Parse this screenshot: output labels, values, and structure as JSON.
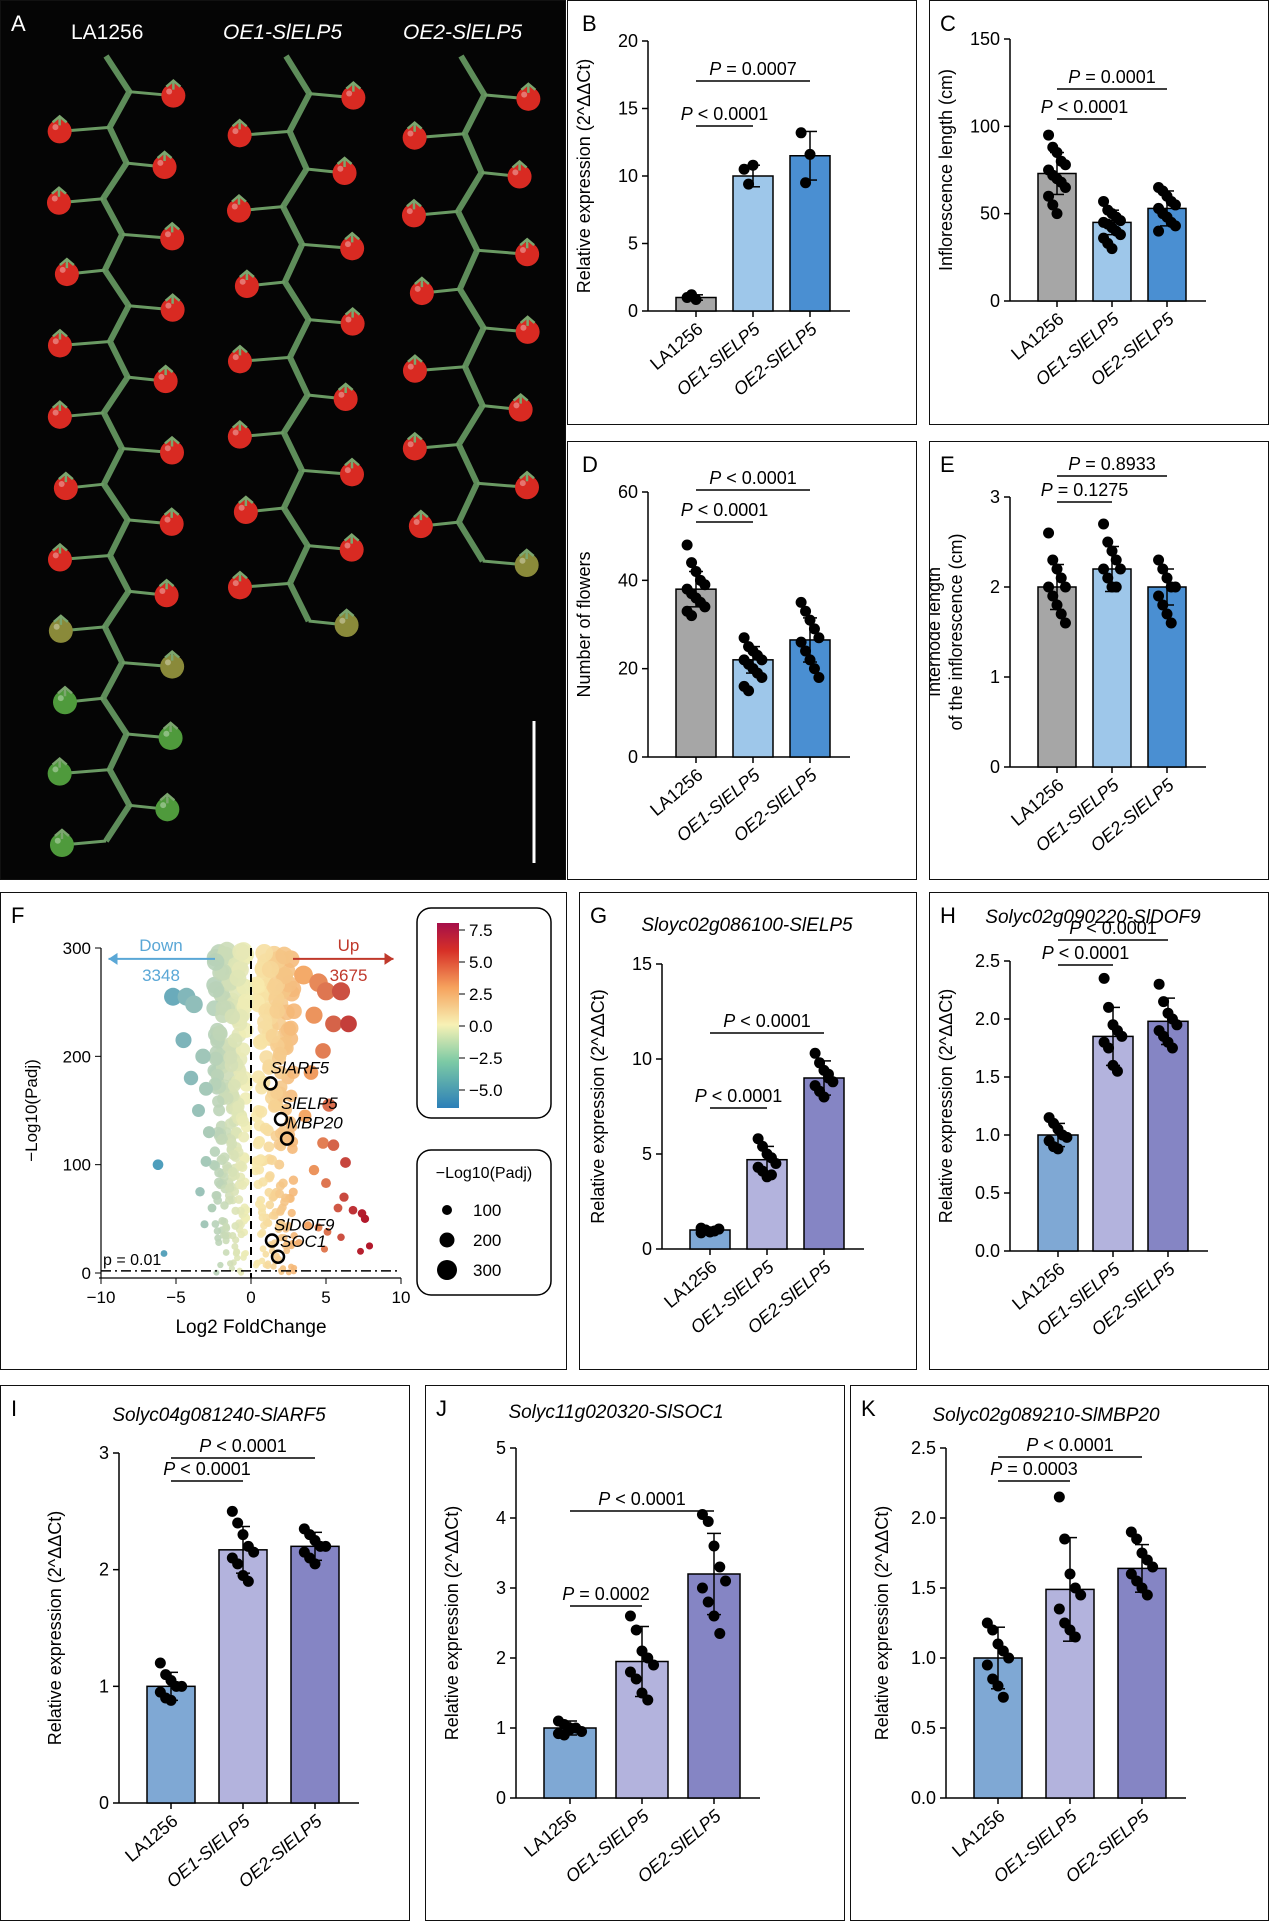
{
  "panel_a": {
    "label": "A",
    "lines": [
      "LA1256",
      "OE1-SlELP5",
      "OE2-SlELP5"
    ]
  },
  "volcano": {
    "label": "F",
    "ylabel": "−Log10(Padj)",
    "xlabel": "Log2 FoldChange",
    "down_label": "Down",
    "down_count": "3348",
    "up_label": "Up",
    "up_count": "3675",
    "threshold_label": "p = 0.01",
    "xticks": [
      "−10",
      "−5",
      "0",
      "5",
      "10"
    ],
    "yticks": [
      "0",
      "100",
      "200",
      "300"
    ],
    "genes": [
      {
        "name": "SlARF5",
        "x": 1.3,
        "y": 175
      },
      {
        "name": "SlELP5",
        "x": 2.0,
        "y": 142
      },
      {
        "name": "MBP20",
        "x": 2.4,
        "y": 124
      },
      {
        "name": "SlDOF9",
        "x": 1.4,
        "y": 30
      },
      {
        "name": "SOC1",
        "x": 1.8,
        "y": 15
      }
    ],
    "colorbar_ticks": [
      "7.5",
      "5.0",
      "2.5",
      "0.0",
      "−2.5",
      "−5.0"
    ],
    "size_legend_title": "−Log10(Padj)",
    "size_legend": [
      "100",
      "200",
      "300"
    ],
    "colors": {
      "down": "#2b8cbe",
      "mid": "#f7f1b5",
      "up": "#b2182b",
      "up_arrow": "#c0392b",
      "down_arrow": "#5aa7d6"
    }
  },
  "chart_data": [
    {
      "id": "B",
      "type": "bar",
      "title": "",
      "categories": [
        "LA1256",
        "OE1-SlELP5",
        "OE2-SlELP5"
      ],
      "ylabel": "Relative expression (2^ΔΔCt)",
      "ylim": [
        0,
        20
      ],
      "yticks": [
        "0",
        "5",
        "10",
        "15",
        "20"
      ],
      "values": [
        1.0,
        10.0,
        11.5
      ],
      "sd": [
        0.2,
        0.8,
        1.8
      ],
      "points": [
        [
          1.0,
          1.2,
          0.85
        ],
        [
          10.5,
          9.4,
          10.8
        ],
        [
          13.2,
          9.5,
          11.6
        ]
      ],
      "pvals": [
        {
          "text": "P < 0.0001",
          "a": 0,
          "b": 1
        },
        {
          "text": "P = 0.0007",
          "a": 0,
          "b": 2
        }
      ],
      "colors": [
        "#a6a6a6",
        "#9ec7ea",
        "#4a8fd2"
      ]
    },
    {
      "id": "C",
      "type": "bar",
      "title": "",
      "categories": [
        "LA1256",
        "OE1-SlELP5",
        "OE2-SlELP5"
      ],
      "ylabel": "Inflorescence length (cm)",
      "ylim": [
        0,
        150
      ],
      "yticks": [
        "0",
        "50",
        "100",
        "150"
      ],
      "values": [
        73,
        45,
        53
      ],
      "sd": [
        12,
        7,
        10
      ],
      "points": [
        [
          95,
          88,
          85,
          80,
          78,
          75,
          72,
          70,
          68,
          65,
          60,
          55,
          50
        ],
        [
          57,
          52,
          50,
          48,
          46,
          45,
          44,
          42,
          40,
          38,
          36,
          33,
          30
        ],
        [
          65,
          63,
          60,
          57,
          55,
          53,
          50,
          48,
          45,
          43,
          40
        ]
      ],
      "pvals": [
        {
          "text": "P < 0.0001",
          "a": 0,
          "b": 1
        },
        {
          "text": "P = 0.0001",
          "a": 0,
          "b": 2
        }
      ],
      "colors": [
        "#a6a6a6",
        "#9ec7ea",
        "#4a8fd2"
      ]
    },
    {
      "id": "D",
      "type": "bar",
      "title": "",
      "categories": [
        "LA1256",
        "OE1-SlELP5",
        "OE2-SlELP5"
      ],
      "ylabel": "Number of flowers",
      "ylim": [
        0,
        60
      ],
      "yticks": [
        "0",
        "20",
        "40",
        "60"
      ],
      "values": [
        38,
        22,
        26.5
      ],
      "sd": [
        4,
        3,
        5
      ],
      "points": [
        [
          48,
          44,
          42,
          40,
          39,
          38,
          37,
          36,
          35,
          34,
          33,
          32
        ],
        [
          27,
          25,
          24,
          23,
          22,
          22,
          21,
          20,
          19,
          18,
          16,
          15
        ],
        [
          35,
          33,
          31,
          29,
          27,
          26,
          24,
          22,
          20,
          18
        ]
      ],
      "pvals": [
        {
          "text": "P < 0.0001",
          "a": 0,
          "b": 1
        },
        {
          "text": "P < 0.0001",
          "a": 0,
          "b": 2
        }
      ],
      "colors": [
        "#a6a6a6",
        "#9ec7ea",
        "#4a8fd2"
      ]
    },
    {
      "id": "E",
      "type": "bar",
      "title": "",
      "categories": [
        "LA1256",
        "OE1-SlELP5",
        "OE2-SlELP5"
      ],
      "ylabel": "Internode length of the inflorescence (cm)",
      "ylim": [
        0,
        3
      ],
      "yticks": [
        "0",
        "1",
        "2",
        "3"
      ],
      "values": [
        2.0,
        2.2,
        2.0
      ],
      "sd": [
        0.25,
        0.25,
        0.2
      ],
      "points": [
        [
          2.6,
          2.3,
          2.2,
          2.1,
          2.0,
          2.0,
          1.9,
          1.8,
          1.7,
          1.6
        ],
        [
          2.7,
          2.5,
          2.4,
          2.3,
          2.2,
          2.2,
          2.1,
          2.0,
          2.0
        ],
        [
          2.3,
          2.2,
          2.1,
          2.0,
          2.0,
          1.9,
          1.8,
          1.7,
          1.6
        ]
      ],
      "pvals": [
        {
          "text": "P = 0.1275",
          "a": 0,
          "b": 1
        },
        {
          "text": "P = 0.8933",
          "a": 0,
          "b": 2
        }
      ],
      "colors": [
        "#a6a6a6",
        "#9ec7ea",
        "#4a8fd2"
      ]
    },
    {
      "id": "G",
      "type": "bar",
      "title": "Sloyc02g086100-SlELP5",
      "categories": [
        "LA1256",
        "OE1-SlELP5",
        "OE2-SlELP5"
      ],
      "ylabel": "Relative expression (2^ΔΔCt)",
      "ylim": [
        0,
        15
      ],
      "yticks": [
        "0",
        "5",
        "10",
        "15"
      ],
      "values": [
        1.0,
        4.7,
        9.0
      ],
      "sd": [
        0.15,
        0.7,
        0.9
      ],
      "points": [
        [
          1.1,
          1.0,
          0.9,
          0.95,
          1.05,
          0.85,
          1.0,
          0.9
        ],
        [
          5.8,
          5.4,
          5.0,
          4.8,
          4.5,
          4.3,
          4.1,
          3.8,
          3.9
        ],
        [
          10.3,
          9.8,
          9.4,
          9.0,
          8.8,
          8.6,
          8.3,
          8.0,
          9.2
        ]
      ],
      "pvals": [
        {
          "text": "P < 0.0001",
          "a": 0,
          "b": 1
        },
        {
          "text": "P < 0.0001",
          "a": 0,
          "b": 2
        }
      ],
      "colors": [
        "#7fa8d4",
        "#b3b3dd",
        "#8585c4"
      ]
    },
    {
      "id": "H",
      "type": "bar",
      "title": "Solyc02g090220-SlDOF9",
      "categories": [
        "LA1256",
        "OE1-SlELP5",
        "OE2-SlELP5"
      ],
      "ylabel": "Relative expression (2^ΔΔCt)",
      "ylim": [
        0,
        2.5
      ],
      "yticks": [
        "0.0",
        "0.5",
        "1.0",
        "1.5",
        "2.0",
        "2.5"
      ],
      "values": [
        1.0,
        1.85,
        1.98
      ],
      "sd": [
        0.1,
        0.25,
        0.2
      ],
      "points": [
        [
          1.15,
          1.1,
          1.05,
          1.0,
          0.98,
          0.95,
          0.9,
          0.88
        ],
        [
          2.35,
          2.1,
          1.95,
          1.9,
          1.85,
          1.8,
          1.75,
          1.6,
          1.55
        ],
        [
          2.3,
          2.15,
          2.05,
          2.0,
          1.95,
          1.9,
          1.85,
          1.8,
          1.75
        ]
      ],
      "pvals": [
        {
          "text": "P < 0.0001",
          "a": 0,
          "b": 1
        },
        {
          "text": "P < 0.0001",
          "a": 0,
          "b": 2
        }
      ],
      "colors": [
        "#7fa8d4",
        "#b3b3dd",
        "#8585c4"
      ]
    },
    {
      "id": "I",
      "type": "bar",
      "title": "Solyc04g081240-SlARF5",
      "categories": [
        "LA1256",
        "OE1-SlELP5",
        "OE2-SlELP5"
      ],
      "ylabel": "Relative expression (2^ΔΔCt)",
      "ylim": [
        0,
        3
      ],
      "yticks": [
        "0",
        "1",
        "2",
        "3"
      ],
      "values": [
        1.0,
        2.17,
        2.2
      ],
      "sd": [
        0.12,
        0.2,
        0.12
      ],
      "points": [
        [
          1.2,
          1.1,
          1.05,
          1.0,
          1.0,
          0.95,
          0.9,
          0.88
        ],
        [
          2.5,
          2.4,
          2.3,
          2.2,
          2.15,
          2.1,
          2.05,
          1.95,
          1.9
        ],
        [
          2.35,
          2.3,
          2.25,
          2.2,
          2.2,
          2.15,
          2.1,
          2.05
        ]
      ],
      "pvals": [
        {
          "text": "P < 0.0001",
          "a": 0,
          "b": 1
        },
        {
          "text": "P < 0.0001",
          "a": 0,
          "b": 2
        }
      ],
      "colors": [
        "#7fa8d4",
        "#b3b3dd",
        "#8585c4"
      ]
    },
    {
      "id": "J",
      "type": "bar",
      "title": "Solyc11g020320-SlSOC1",
      "categories": [
        "LA1256",
        "OE1-SlELP5",
        "OE2-SlELP5"
      ],
      "ylabel": "Relative expression (2^ΔΔCt)",
      "ylim": [
        0,
        5
      ],
      "yticks": [
        "0",
        "1",
        "2",
        "3",
        "4",
        "5"
      ],
      "values": [
        1.0,
        1.95,
        3.2
      ],
      "sd": [
        0.1,
        0.5,
        0.58
      ],
      "points": [
        [
          1.1,
          1.05,
          1.0,
          1.0,
          0.95,
          0.92,
          0.9,
          0.98
        ],
        [
          2.6,
          2.4,
          2.1,
          2.0,
          1.9,
          1.8,
          1.7,
          1.5,
          1.4
        ],
        [
          4.05,
          3.95,
          3.6,
          3.3,
          3.1,
          3.0,
          2.8,
          2.6,
          2.35
        ]
      ],
      "pvals": [
        {
          "text": "P = 0.0002",
          "a": 0,
          "b": 1
        },
        {
          "text": "P < 0.0001",
          "a": 0,
          "b": 2
        }
      ],
      "colors": [
        "#7fa8d4",
        "#b3b3dd",
        "#8585c4"
      ]
    },
    {
      "id": "K",
      "type": "bar",
      "title": "Solyc02g089210-SlMBP20",
      "categories": [
        "LA1256",
        "OE1-SlELP5",
        "OE2-SlELP5"
      ],
      "ylabel": "Relative expression (2^ΔΔCt)",
      "ylim": [
        0,
        2.5
      ],
      "yticks": [
        "0.0",
        "0.5",
        "1.0",
        "1.5",
        "2.0",
        "2.5"
      ],
      "values": [
        1.0,
        1.49,
        1.64
      ],
      "sd": [
        0.22,
        0.37,
        0.17
      ],
      "points": [
        [
          1.25,
          1.2,
          1.1,
          1.05,
          1.0,
          0.95,
          0.85,
          0.8,
          0.72
        ],
        [
          2.15,
          1.85,
          1.6,
          1.5,
          1.45,
          1.35,
          1.25,
          1.2,
          1.15
        ],
        [
          1.9,
          1.85,
          1.75,
          1.7,
          1.65,
          1.6,
          1.55,
          1.5,
          1.45
        ]
      ],
      "pvals": [
        {
          "text": "P = 0.0003",
          "a": 0,
          "b": 1
        },
        {
          "text": "P < 0.0001",
          "a": 0,
          "b": 2
        }
      ],
      "colors": [
        "#7fa8d4",
        "#b3b3dd",
        "#8585c4"
      ]
    }
  ]
}
